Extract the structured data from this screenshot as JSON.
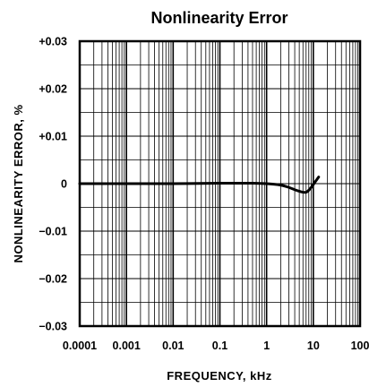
{
  "chart_data": {
    "type": "line",
    "title": "Nonlinearity Error",
    "xlabel": "FREQUENCY, kHz",
    "ylabel": "NONLINEARITY ERROR, %",
    "x_scale": "log",
    "xlim": [
      0.0001,
      100
    ],
    "ylim": [
      -0.03,
      0.03
    ],
    "grid": true,
    "x_ticks": [
      {
        "value": 0.0001,
        "label": "0.0001"
      },
      {
        "value": 0.001,
        "label": "0.001"
      },
      {
        "value": 0.01,
        "label": "0.01"
      },
      {
        "value": 0.1,
        "label": "0.1"
      },
      {
        "value": 1,
        "label": "1"
      },
      {
        "value": 10,
        "label": "10"
      },
      {
        "value": 100,
        "label": "100"
      }
    ],
    "y_ticks": [
      {
        "value": 0.03,
        "label": "+0.03"
      },
      {
        "value": 0.02,
        "label": "+0.02"
      },
      {
        "value": 0.01,
        "label": "+0.01"
      },
      {
        "value": 0,
        "label": "0"
      },
      {
        "value": -0.01,
        "label": "−0.01"
      },
      {
        "value": -0.02,
        "label": "−0.02"
      },
      {
        "value": -0.03,
        "label": "−0.03"
      }
    ],
    "series": [
      {
        "x": [
          0.0001,
          0.001,
          0.01,
          0.1,
          0.5,
          1,
          2,
          3,
          5,
          7,
          9,
          11,
          13
        ],
        "y": [
          0,
          0,
          0,
          0.0001,
          0.0001,
          0,
          -0.0003,
          -0.0008,
          -0.0016,
          -0.0018,
          -0.0008,
          0.0004,
          0.0014
        ]
      }
    ]
  }
}
